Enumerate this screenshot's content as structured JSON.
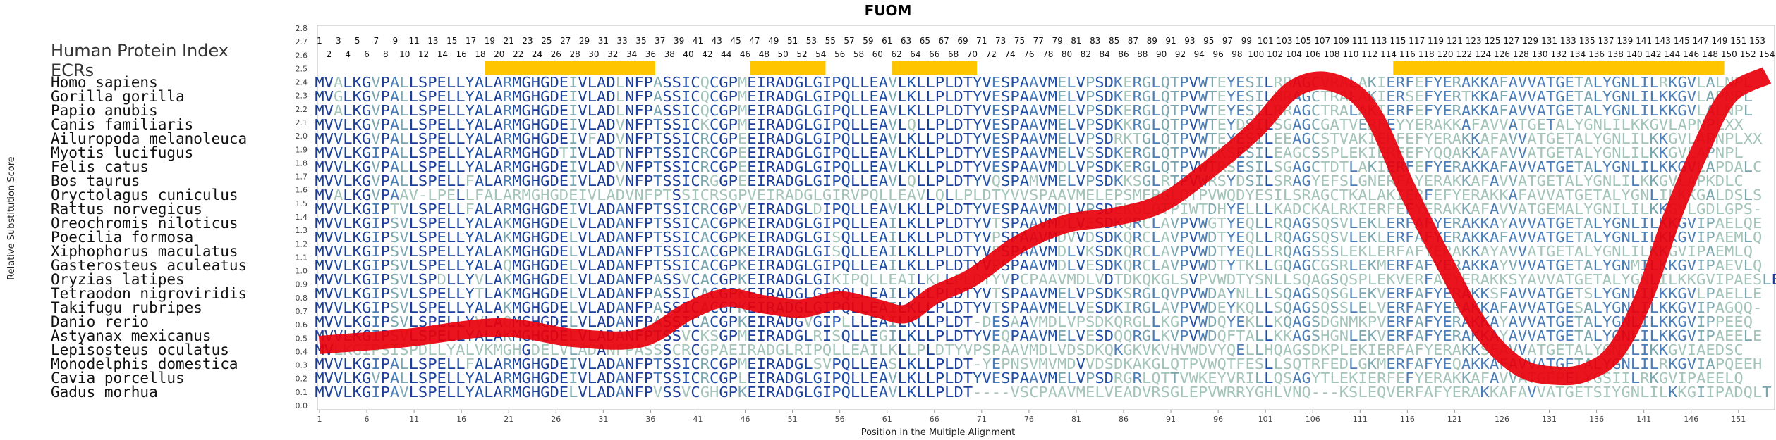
{
  "chart_data": {
    "type": "line",
    "title": "FUOM",
    "xlabel": "Position in the Multiple Alignment",
    "ylabel": "Relative Substitution Score",
    "ylim": [
      0.0,
      2.8
    ],
    "xlim": [
      1,
      154
    ],
    "y_ticks": [
      "0.0",
      "0.1",
      "0.2",
      "0.3",
      "0.4",
      "0.5",
      "0.6",
      "0.7",
      "0.8",
      "0.9",
      "1.0",
      "1.1",
      "1.2",
      "1.3",
      "1.4",
      "1.5",
      "1.6",
      "1.7",
      "1.8",
      "1.9",
      "2.0",
      "2.1",
      "2.2",
      "2.3",
      "2.4",
      "2.5",
      "2.6",
      "2.7",
      "2.8"
    ],
    "x_ticks": [
      "1",
      "6",
      "11",
      "16",
      "21",
      "26",
      "31",
      "36",
      "41",
      "46",
      "51",
      "56",
      "61",
      "66",
      "71",
      "76",
      "81",
      "86",
      "91",
      "96",
      "101",
      "106",
      "111",
      "116",
      "121",
      "126",
      "131",
      "136",
      "141",
      "146",
      "151"
    ],
    "top_ticks_odd": [
      "1",
      "3",
      "5",
      "7",
      "9",
      "11",
      "13",
      "15",
      "17",
      "19",
      "21",
      "23",
      "25",
      "27",
      "29",
      "31",
      "33",
      "35",
      "37",
      "39",
      "41",
      "43",
      "45",
      "47",
      "49",
      "51",
      "53",
      "55",
      "57",
      "59",
      "61",
      "63",
      "65",
      "67",
      "69",
      "71",
      "73",
      "75",
      "77",
      "79",
      "81",
      "83",
      "85",
      "87",
      "89",
      "91",
      "93",
      "95",
      "97",
      "99",
      "101",
      "103",
      "105",
      "107",
      "109",
      "111",
      "113",
      "115",
      "117",
      "119",
      "121",
      "123",
      "125",
      "127",
      "129",
      "131",
      "133",
      "135",
      "137",
      "139",
      "141",
      "143",
      "145",
      "147",
      "149",
      "151",
      "153"
    ],
    "top_ticks_even": [
      "2",
      "4",
      "6",
      "8",
      "10",
      "12",
      "14",
      "16",
      "18",
      "20",
      "22",
      "24",
      "26",
      "28",
      "30",
      "32",
      "34",
      "36",
      "38",
      "40",
      "42",
      "44",
      "46",
      "48",
      "50",
      "52",
      "54",
      "56",
      "58",
      "60",
      "62",
      "64",
      "66",
      "68",
      "70",
      "72",
      "74",
      "76",
      "78",
      "80",
      "82",
      "84",
      "86",
      "88",
      "90",
      "92",
      "94",
      "96",
      "98",
      "100",
      "102",
      "104",
      "106",
      "108",
      "110",
      "112",
      "114",
      "116",
      "118",
      "120",
      "122",
      "124",
      "126",
      "128",
      "130",
      "132",
      "134",
      "136",
      "138",
      "140",
      "142",
      "144",
      "146",
      "148",
      "150",
      "152",
      "154"
    ],
    "header_left": "Human Protein Index",
    "ecrs_label": "ECRs",
    "ecr_regions": [
      [
        19,
        36
      ],
      [
        47,
        54
      ],
      [
        62,
        70
      ],
      [
        115,
        149
      ]
    ],
    "series": [
      {
        "color": "#e8000b",
        "x": [
          1,
          10,
          20,
          28,
          35,
          40,
          44,
          48,
          52,
          56,
          60,
          63,
          66,
          70,
          75,
          80,
          85,
          90,
          95,
          100,
          104,
          108,
          112,
          116,
          120,
          124,
          128,
          132,
          135,
          138,
          141,
          144,
          147,
          150,
          154
        ],
        "y": [
          0.45,
          0.5,
          0.58,
          0.5,
          0.5,
          0.7,
          0.8,
          0.75,
          0.72,
          0.78,
          0.72,
          0.68,
          0.82,
          0.95,
          1.2,
          1.35,
          1.4,
          1.5,
          1.75,
          2.05,
          2.35,
          2.4,
          2.2,
          1.6,
          1.05,
          0.55,
          0.28,
          0.22,
          0.25,
          0.4,
          0.8,
          1.4,
          1.9,
          2.3,
          2.45
        ]
      }
    ]
  },
  "alignment": {
    "species": [
      "Homo sapiens",
      "Gorilla gorilla",
      "Papio anubis",
      "Canis familiaris",
      "Ailuropoda melanoleuca",
      "Myotis lucifugus",
      "Felis catus",
      "Bos taurus",
      "Oryctolagus cuniculus",
      "Rattus norvegicus",
      "Oreochromis niloticus",
      "Poecilia formosa",
      "Xiphophorus maculatus",
      "Gasterosteus aculeatus",
      "Oryzias latipes",
      "Tetraodon nigroviridis",
      "Takifugu rubripes",
      "Danio rerio",
      "Astyanax mexicanus",
      "Lepisosteus oculatus",
      "Monodelphis domestica",
      "Cavia porcellus",
      "Gadus morhua"
    ],
    "sequences": [
      "MVALKGVPALLSPELLYALARMGHGDEIVLADLNFPASSICQCGPMEIRADGLGIPQLLEAVLKLLPLDTYVESPAAVMELVPSDKERGLQTPVWTEYESILRRAGCVRALAKIERFEFYERAKKAFAVVATGETALYGNLILRKGVLALNPL",
      "MVGLKGVPALLSPELLYALARMGHGDEIVLADLNFPASSICQCGPMEIRADGLGIPQLLEAVLKLLPLDTYVESPAAVMELVPSDKERGLQTPVWTEYESILHRAGCTRALAKIERSEFYERTKKAFAVVATGETALYGNLILKKGVLAPNPL",
      "MVALKGVPALLSPELLYALARMGHGDEIVLADLNFPASSICQCGPMEIRADGLGIPQLLEAVLKLLPLDTYVESPAAVMELVPSDKERGLQTPVWTEYESILRRAGCTRALAKIERFEFYERAKKAFAVVATGETALYGNLILKKGVLALNPL",
      "MVVLKGVPALLSPELLYALARMGHGDEIVLADVNFPTSSICKCGPMEIRADGLGIPQLLEAVLQLLPLDTYVESPAAVMELVPSDKKRGLQTPVWTEYDSILSGAGCGATVERFEYYERAKKAFAVVATGETALYGNLILKKGVLAPNPLXX",
      "MVVLKGVPALLSPELLYALARMGHGDEIVFADVNFPTSSICRCGPEEIRADGLGIPQLLEAVLKLLPLDTYVESPAAVMELVPSDRKTGLQTPVWTEYESILEEAGCSTVAKIERFEFYERAKKAFAVVATGETALYGNLILKKGVLAPNPLXX",
      "MVVLKGIPALLSPELLYALARMGHGDTIVLADTNFPTSSICRCGPEEIRADGLGIPQLLEAVLKLLPLDTYVESPAAVMELVSSDKERGLQTPVWTKSESILEAGCSSPLEKIERFEFYQQAKKAFAVVATGETALYGNLILKKGVLAPNPL",
      "MVVLKGVPALLSPELLYALARMGHGDEIVLADVNFPTSSICRCGPEEIRADGLGIPQLLEAVLKLLPLDTYVESPAAVMDLVPSDKERGLQTPVWTRSESILSGAGCTDTLAKIERFEFYERAKKAFAVVATGETALYGNLILKKGVLAPDALC",
      "MVVLKGVPALLSPELLFALARMGHGDEIVLADVNFPTSSICRGGPEEIRADGLGIPQLLEAVLQLLPLDTYVQSPAMVMELVPSDKKSGLRTPVWRSYDSILSRAGYEFSLGNERFAYERAKKAFAVVATGETALYGNLILKKGVLAPKDLC",
      "MVALKGVPAAV-LPELLFALARMGHGDEIVLADVNFPTSSICRSGPVEIRADGLGIRVPQLLEAVLQLLPLDTYVVSPAAVMELEPSMERGLQTPVWQDYESILSRAGCTKALAKIERFEFYERAKKAFAVVATGETALYGNLILKKGALDSLS",
      "MVVLKGIPTVLSPELLFALARMGHGDEIVLADANFPTSSICRCGPVEIRADGLDIPQLLEAVLKLLPLDTYVESPAAVMDLVPSDEKGLQTPIWTDHYELLLKADCKALRKIERFEFYERAKKAFAVVATGEMALYGNILILKKGVLGDLGPS-",
      "MVVLKGIPSVLSPELLYALAKMGHGDELVLADANFPTSSICACGPKEIRADGLGIPQLLEAILKLLPLDTYVTSPAAVMDLVESDKQRCLAVPVWGTYEQLLRQAGSQSVLEKLERFAFYERAKKAYAVVATGETALYGNLILKKGVIPAELQE",
      "MVVLKGIPSVLSPELLYALAKMGHGDELVLADANFPTSSICACGPKEIRADGLGISQLLEAILKLLPLDTYVPSPAAVMDVVDSDKQRCLAVPVWDTYEQLLRQAGSQSVLEKLERFAFYERAKKAFAVVATGETALYGNLILKKGVIPAEMLQ",
      "MVVLKGIPSVLSPELLYALAKMGHGDELVLADANFPTSSICACGPKEIRADGLGISQLLEAILKLLPLDTYVPSPAAVMDLVKSDKQRCLAVPVWDTYEQLLRQAGSSSLEKLERFAFYERAKKAYAVVATGETALYGNLILKKGVIPAEMLQ",
      "MVVLKGIPSVLSPELLYALAQMGHGDELVLADANFPTSSICACGPKEIRADGLGIPQLLEAILKLLPLDTYVPSPAAVMDLVESDKQRCLAVPVWDTYTKLLGQAGCGSRLEKMERFAFYERAKKAYVVVATGETALYGNMILKKGVIPAEVLQ",
      "MVVLKGIPSVLSPDLLYVLAKMGHGDELVLADANFPASSVCACGPKEIRADGLGIKIPQLLEAILKLLPLDTYVPCPAAVMDLVDTDKQKGLSVPVWDTYSNLLSQAGSQSPLEKVERFAFYERAKKSYAVVATGETALYGNLILKKGVIPAESLE",
      "MVVLKGIPSVLSPELLYTLAKMGHGDELVLADANFPASSICACGPKEIRADGLGIPQLLEAILKLLPLDTYVTSPAAVMELVPSDKSRGLQVPVWDAYNLLLSQAGSQSGLEKVERFAFYERAKKSFAVVATGETSLYGNLILKKGVLPAELLE",
      "MVVLKGIPSVLSPELLYALAKMGHGDELVLADANFPASSICACGPKEIRADGLGIPQLLEAILKLLPLDTYVTSPAAVMELVESDKIRGLAVPVWDEYKQLLSQAGSQSSLELVERFAFYERAKKAFAVVATGESALYGNLILKKGVIPAGQQ-",
      "MVVLKGIPSVLSPELLYVLAQMGHGDELVLADANFPASSICACGPKEIRADGVGIPLLLEAILKLLPLDT-DESAAVMDLVPSDKQRGLLKGPVWDQYEKLLKQAGSDGNMKPVERFAFYERAKKAYAVVATGETALYGNLILKKGVIPPEEQ",
      "MVVLKGIPSVLSPELLYALAKMGHGDELVLADANFPTSSVCKSGPMEIRADGLRISQLLEGILKLLPLDTYVEQPAAVMELVESDQQRGLKVPVWDQFTALLKKAGSHGNLEKVERFAFYERAKKAYAVVATGETALYGNLILKKGVIPAEELE",
      "MVLKGIPSISPDLLYALVKMGHGDELVLADANFPASSSCRCGPAEIRADGLRIPQLLEAILKLLPLDTYVPSPAAVMDLVDSDKQKGKVKVHVWDVYQELLHQAGSDKPLEKIERFAFYERAKKSFAVVATGETALYGNILIKKGVIAEDSC",
      "MVVLKGIPALLSPELLFALARMGHGDEIVLADANFPTSSICRCGPMEIRADGLSVPQLLEASLKLLPLDT-YEPNSVMVMDVVDSDKAKGLQTPVWQTFESLLSQTRFEDLGKMERFAFYEQAKKAFAVVATGETALYGNLILRKGVIAPQEEH",
      "MVVLKGVPALLSPELLYALARMGHGDEIVLADANFPTSSICRCGPLEIRADGLGIPQLLEAVLKLLPLDTYVESPAAVMELVPSDRGRLQTTVWKEYVRILLQSAGYTLEKIERFEFYERAKKAFAVVATGEPELYGSIILRKGVIPAEELQ",
      "MVVLKGIPAVLSPELLYALARMGHGDELVLADANFPVSSVCGHGPKEIRADGLGIPQLLEAVLKLLPLDT----VSCPAAVMELVEADVRSGLEPVWRRYGHLVNQ---KSLEQVERFAFYERAKKAFAVVATGETSIYGNLILKKGIIPADQLT"
    ]
  }
}
